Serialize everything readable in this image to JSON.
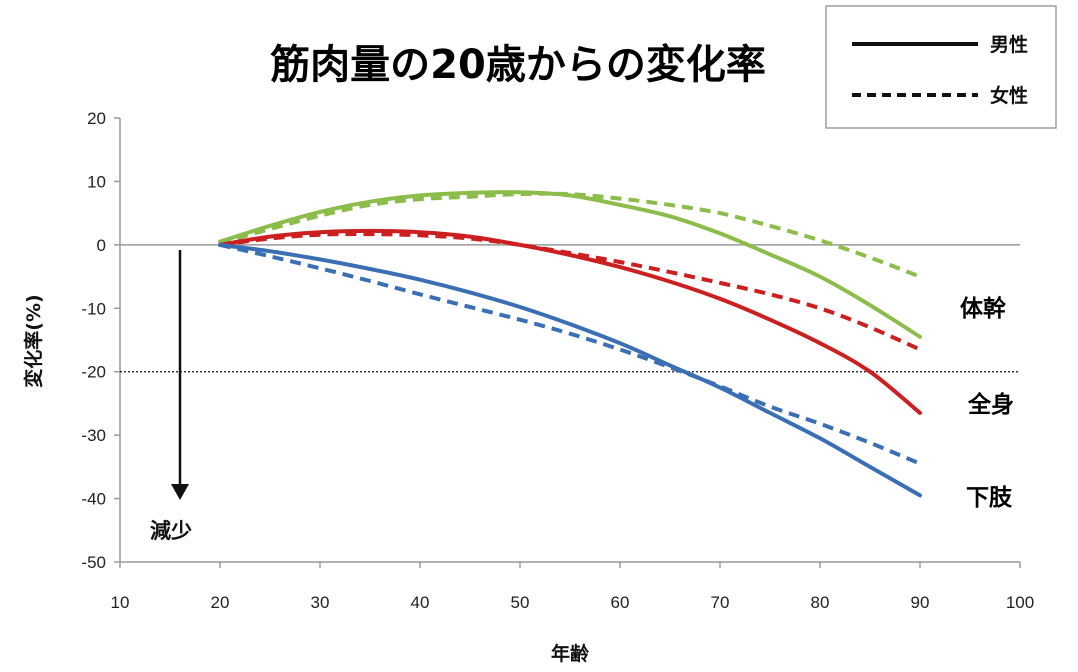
{
  "chart_data": {
    "type": "line",
    "title": "筋肉量の20歳からの変化率",
    "xlabel": "年齢",
    "ylabel": "変化率(%)",
    "xlim": [
      10,
      100
    ],
    "ylim": [
      -50,
      20
    ],
    "x_ticks": [
      "10",
      "20",
      "30",
      "40",
      "50",
      "60",
      "70",
      "80",
      "90",
      "100"
    ],
    "y_ticks": [
      "20",
      "10",
      "0",
      "-10",
      "-20",
      "-30",
      "-40",
      "-50"
    ],
    "x_tick_values": [
      10,
      20,
      30,
      40,
      50,
      60,
      70,
      80,
      90,
      100
    ],
    "y_tick_values": [
      20,
      10,
      0,
      -10,
      -20,
      -30,
      -40,
      -50
    ],
    "reference_line_y": -20,
    "grid": false,
    "legend": {
      "position": "top-right",
      "items": [
        {
          "label": "男性",
          "style": "solid"
        },
        {
          "label": "女性",
          "style": "dashed"
        }
      ]
    },
    "series": [
      {
        "name": "体幹",
        "sex": "男性",
        "style": "solid",
        "color": "#8cbd4b",
        "x": [
          20,
          25,
          30,
          35,
          40,
          45,
          50,
          55,
          60,
          65,
          70,
          75,
          80,
          85,
          90
        ],
        "y": [
          0.5,
          3.0,
          5.2,
          6.8,
          7.8,
          8.2,
          8.3,
          7.8,
          6.3,
          4.5,
          1.8,
          -1.5,
          -5.0,
          -9.5,
          -14.5
        ]
      },
      {
        "name": "体幹",
        "sex": "女性",
        "style": "dashed",
        "color": "#8cbd4b",
        "x": [
          20,
          25,
          30,
          35,
          40,
          45,
          50,
          55,
          60,
          65,
          70,
          75,
          80,
          85,
          90
        ],
        "y": [
          0.3,
          2.5,
          4.6,
          6.3,
          7.2,
          7.6,
          8.0,
          8.0,
          7.3,
          6.3,
          5.0,
          3.0,
          0.7,
          -2.0,
          -5.0
        ]
      },
      {
        "name": "全身",
        "sex": "男性",
        "style": "solid",
        "color": "#cc1f1f",
        "x": [
          20,
          25,
          30,
          35,
          40,
          45,
          50,
          55,
          60,
          65,
          70,
          75,
          80,
          85,
          90
        ],
        "y": [
          0.0,
          1.3,
          2.0,
          2.2,
          2.0,
          1.3,
          0.0,
          -1.6,
          -3.5,
          -5.8,
          -8.5,
          -11.8,
          -15.5,
          -20.0,
          -26.5
        ]
      },
      {
        "name": "全身",
        "sex": "女性",
        "style": "dashed",
        "color": "#cc1f1f",
        "x": [
          20,
          25,
          30,
          35,
          40,
          45,
          50,
          55,
          60,
          65,
          70,
          75,
          80,
          85,
          90
        ],
        "y": [
          0.0,
          1.0,
          1.6,
          1.7,
          1.5,
          1.0,
          0.0,
          -1.3,
          -2.7,
          -4.3,
          -6.0,
          -7.8,
          -10.0,
          -13.0,
          -16.5
        ]
      },
      {
        "name": "下肢",
        "sex": "男性",
        "style": "solid",
        "color": "#3a6fb5",
        "x": [
          20,
          25,
          30,
          35,
          40,
          45,
          50,
          55,
          60,
          65,
          70,
          75,
          80,
          85,
          90
        ],
        "y": [
          0.0,
          -1.0,
          -2.3,
          -3.8,
          -5.5,
          -7.5,
          -9.8,
          -12.5,
          -15.5,
          -19.0,
          -22.5,
          -26.5,
          -30.5,
          -35.0,
          -39.5
        ]
      },
      {
        "name": "下肢",
        "sex": "女性",
        "style": "dashed",
        "color": "#3a6fb5",
        "x": [
          20,
          25,
          30,
          35,
          40,
          45,
          50,
          55,
          60,
          65,
          70,
          75,
          80,
          85,
          90
        ],
        "y": [
          0.0,
          -1.8,
          -3.7,
          -5.7,
          -7.8,
          -9.8,
          -11.8,
          -14.0,
          -16.5,
          -19.3,
          -22.3,
          -25.5,
          -28.2,
          -31.2,
          -34.5
        ]
      }
    ],
    "series_labels": [
      {
        "text": "体幹",
        "color": "#8cbd4b"
      },
      {
        "text": "全身",
        "color": "#cc1f1f"
      },
      {
        "text": "下肢",
        "color": "#3a6fb5"
      }
    ],
    "annotation": {
      "text": "減少",
      "arrow": "down"
    }
  }
}
